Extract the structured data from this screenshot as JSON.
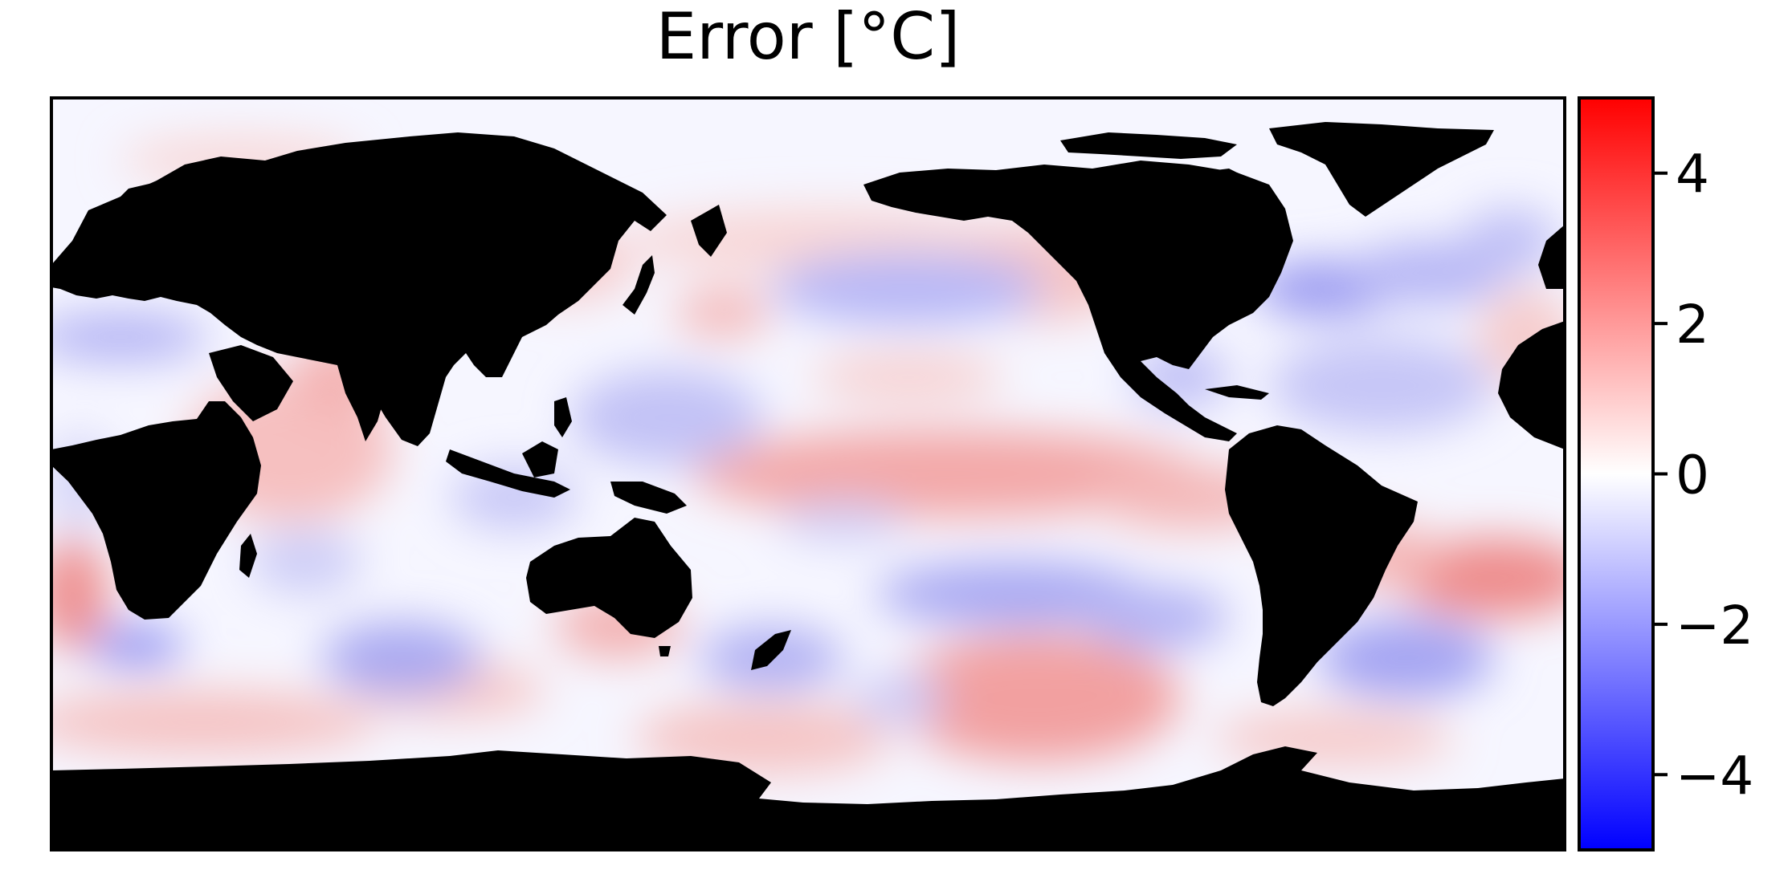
{
  "title": "Error [°C]",
  "colorbar": {
    "range": [
      -5,
      5
    ],
    "ticks": [
      4,
      2,
      0,
      -2,
      -4
    ],
    "tick_labels": [
      "4",
      "2",
      "0",
      "−2",
      "−4"
    ],
    "colormap": "bwr",
    "colors": {
      "min": "#0000ff",
      "mid": "#ffffff",
      "max": "#ff0000"
    }
  },
  "map": {
    "projection": "plate-carree",
    "central_longitude": 180,
    "land_color": "#000000",
    "ocean_field": "temperature error, diverging blue-white-red"
  }
}
